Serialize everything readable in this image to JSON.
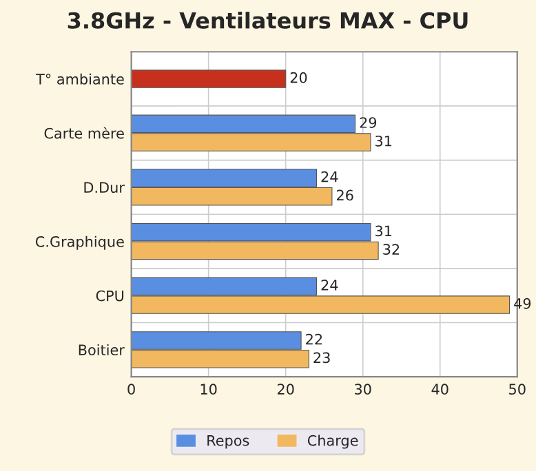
{
  "chart_data": {
    "type": "bar",
    "orientation": "horizontal",
    "title": "3.8GHz - Ventilateurs MAX - CPU",
    "categories": [
      "T° ambiante",
      "Carte mère",
      "D.Dur",
      "C.Graphique",
      "CPU",
      "Boitier"
    ],
    "series": [
      {
        "color": "#c8301e",
        "values": [
          20,
          null,
          null,
          null,
          null,
          null
        ]
      },
      {
        "name": "Repos",
        "color": "#5a8ee0",
        "values": [
          null,
          29,
          24,
          31,
          24,
          22
        ]
      },
      {
        "name": "Charge",
        "color": "#f2b860",
        "values": [
          null,
          31,
          26,
          32,
          49,
          23
        ]
      }
    ],
    "xlim": [
      0,
      50
    ],
    "xticks": [
      0,
      10,
      20,
      30,
      40,
      50
    ],
    "grid": true,
    "legend": "bottom",
    "data_labels": true
  }
}
